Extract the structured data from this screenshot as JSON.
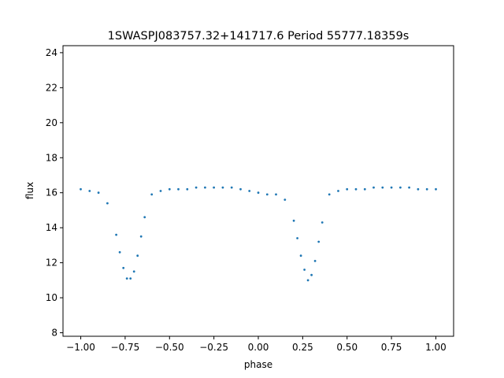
{
  "chart_data": {
    "type": "scatter",
    "title": "1SWASPJ083757.32+141717.6 Period 55777.18359s",
    "xlabel": "phase",
    "ylabel": "flux",
    "xlim": [
      -1.1,
      1.1
    ],
    "ylim": [
      7.8,
      24.4
    ],
    "x_ticks": [
      -1.0,
      -0.75,
      -0.5,
      -0.25,
      0.0,
      0.25,
      0.5,
      0.75,
      1.0
    ],
    "x_tick_labels": [
      "−1.00",
      "−0.75",
      "−0.50",
      "−0.25",
      "0.00",
      "0.25",
      "0.50",
      "0.75",
      "1.00"
    ],
    "y_ticks": [
      8,
      10,
      12,
      14,
      16,
      18,
      20,
      22,
      24
    ],
    "y_tick_labels": [
      "8",
      "10",
      "12",
      "14",
      "16",
      "18",
      "20",
      "22",
      "24"
    ],
    "grid": false,
    "legend": "none",
    "point_color": "#1f77b4",
    "baseline_flux": 16.2,
    "primary_eclipse": {
      "phase_center": 0.27,
      "min_flux": 11.0
    },
    "secondary_dip": {
      "phase_center": 0.05,
      "min_flux": 15.8
    },
    "series": [
      {
        "phase_x": [
          -1.0,
          -0.95,
          -0.9,
          -0.85,
          -0.8,
          -0.78,
          -0.76,
          -0.74,
          -0.72,
          -0.7,
          -0.68,
          -0.66,
          -0.64,
          -0.6,
          -0.55,
          -0.5,
          -0.45,
          -0.4,
          -0.35,
          -0.3,
          -0.25,
          -0.2,
          -0.15,
          -0.1,
          -0.05,
          0.0,
          0.05,
          0.1,
          0.15,
          0.2,
          0.22,
          0.24,
          0.26,
          0.28,
          0.3,
          0.32,
          0.34,
          0.36,
          0.4,
          0.45,
          0.5,
          0.55,
          0.6,
          0.65,
          0.7,
          0.75,
          0.8,
          0.85,
          0.9,
          0.95,
          1.0
        ],
        "flux_y": [
          16.2,
          16.1,
          16.0,
          15.4,
          13.6,
          12.6,
          11.7,
          11.1,
          11.1,
          11.5,
          12.4,
          13.5,
          14.6,
          15.9,
          16.1,
          16.2,
          16.2,
          16.2,
          16.3,
          16.3,
          16.3,
          16.3,
          16.3,
          16.2,
          16.1,
          16.0,
          15.9,
          15.9,
          15.6,
          14.4,
          13.4,
          12.4,
          11.6,
          11.0,
          11.3,
          12.1,
          13.2,
          14.3,
          15.9,
          16.1,
          16.2,
          16.2,
          16.2,
          16.3,
          16.3,
          16.3,
          16.3,
          16.3,
          16.2,
          16.2,
          16.2
        ]
      }
    ]
  }
}
